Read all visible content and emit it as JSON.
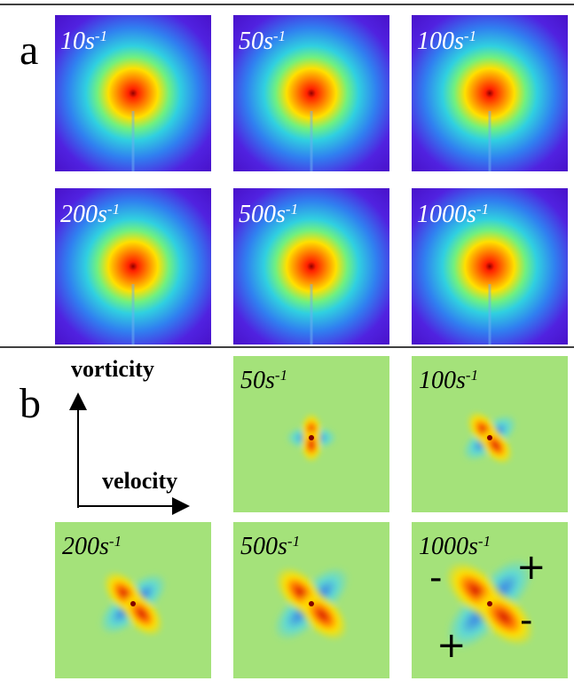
{
  "panels": [
    {
      "label": "a",
      "images": [
        {
          "rate": "10s",
          "exp": "-1"
        },
        {
          "rate": "50s",
          "exp": "-1"
        },
        {
          "rate": "100s",
          "exp": "-1"
        },
        {
          "rate": "200s",
          "exp": "-1"
        },
        {
          "rate": "500s",
          "exp": "-1"
        },
        {
          "rate": "1000s",
          "exp": "-1"
        }
      ]
    },
    {
      "label": "b",
      "axes": {
        "y": "vorticity",
        "x": "velocity"
      },
      "images": [
        {
          "rate": "50s",
          "exp": "-1"
        },
        {
          "rate": "100s",
          "exp": "-1"
        },
        {
          "rate": "200s",
          "exp": "-1"
        },
        {
          "rate": "500s",
          "exp": "-1"
        },
        {
          "rate": "1000s",
          "exp": "-1"
        }
      ],
      "signs": [
        "-",
        "+",
        "+",
        "-"
      ]
    }
  ]
}
